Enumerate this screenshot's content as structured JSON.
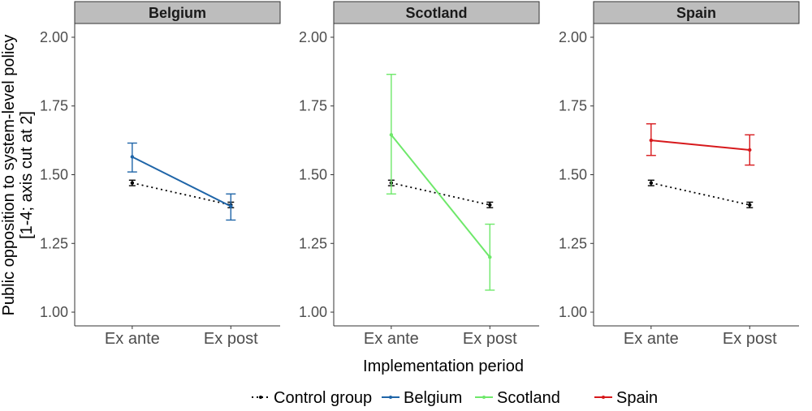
{
  "chart_data": {
    "type": "line",
    "xlabel": "Implementation period",
    "ylabel_lines": [
      "Public opposition to system-level policy",
      "[1-4; axis cut at 2]"
    ],
    "categories": [
      "Ex ante",
      "Ex post"
    ],
    "ylim": [
      0.95,
      2.05
    ],
    "yticks": [
      1.0,
      1.25,
      1.5,
      1.75,
      2.0
    ],
    "ytick_labels": [
      "1.00",
      "1.25",
      "1.50",
      "1.75",
      "2.00"
    ],
    "grid": false,
    "legend_position": "bottom",
    "legend": [
      {
        "label": "Control group",
        "color": "#000000",
        "style": "dotted"
      },
      {
        "label": "Belgium",
        "color": "#1f65a8",
        "style": "solid"
      },
      {
        "label": "Scotland",
        "color": "#6ee86a",
        "style": "solid"
      },
      {
        "label": "Spain",
        "color": "#d7191c",
        "style": "solid"
      }
    ],
    "panels": [
      {
        "title": "Belgium",
        "series": [
          {
            "name": "Control group",
            "color": "#000000",
            "style": "dotted",
            "values": [
              1.47,
              1.39
            ],
            "lower": [
              1.46,
              1.38
            ],
            "upper": [
              1.48,
              1.4
            ]
          },
          {
            "name": "Belgium",
            "color": "#1f65a8",
            "style": "solid",
            "values": [
              1.565,
              1.385
            ],
            "lower": [
              1.51,
              1.335
            ],
            "upper": [
              1.615,
              1.43
            ]
          }
        ]
      },
      {
        "title": "Scotland",
        "series": [
          {
            "name": "Control group",
            "color": "#000000",
            "style": "dotted",
            "values": [
              1.47,
              1.39
            ],
            "lower": [
              1.46,
              1.38
            ],
            "upper": [
              1.48,
              1.4
            ]
          },
          {
            "name": "Scotland",
            "color": "#6ee86a",
            "style": "solid",
            "values": [
              1.645,
              1.2
            ],
            "lower": [
              1.43,
              1.08
            ],
            "upper": [
              1.865,
              1.32
            ]
          }
        ]
      },
      {
        "title": "Spain",
        "series": [
          {
            "name": "Control group",
            "color": "#000000",
            "style": "dotted",
            "values": [
              1.47,
              1.39
            ],
            "lower": [
              1.46,
              1.38
            ],
            "upper": [
              1.48,
              1.4
            ]
          },
          {
            "name": "Spain",
            "color": "#d7191c",
            "style": "solid",
            "values": [
              1.625,
              1.59
            ],
            "lower": [
              1.57,
              1.535
            ],
            "upper": [
              1.685,
              1.645
            ]
          }
        ]
      }
    ]
  }
}
